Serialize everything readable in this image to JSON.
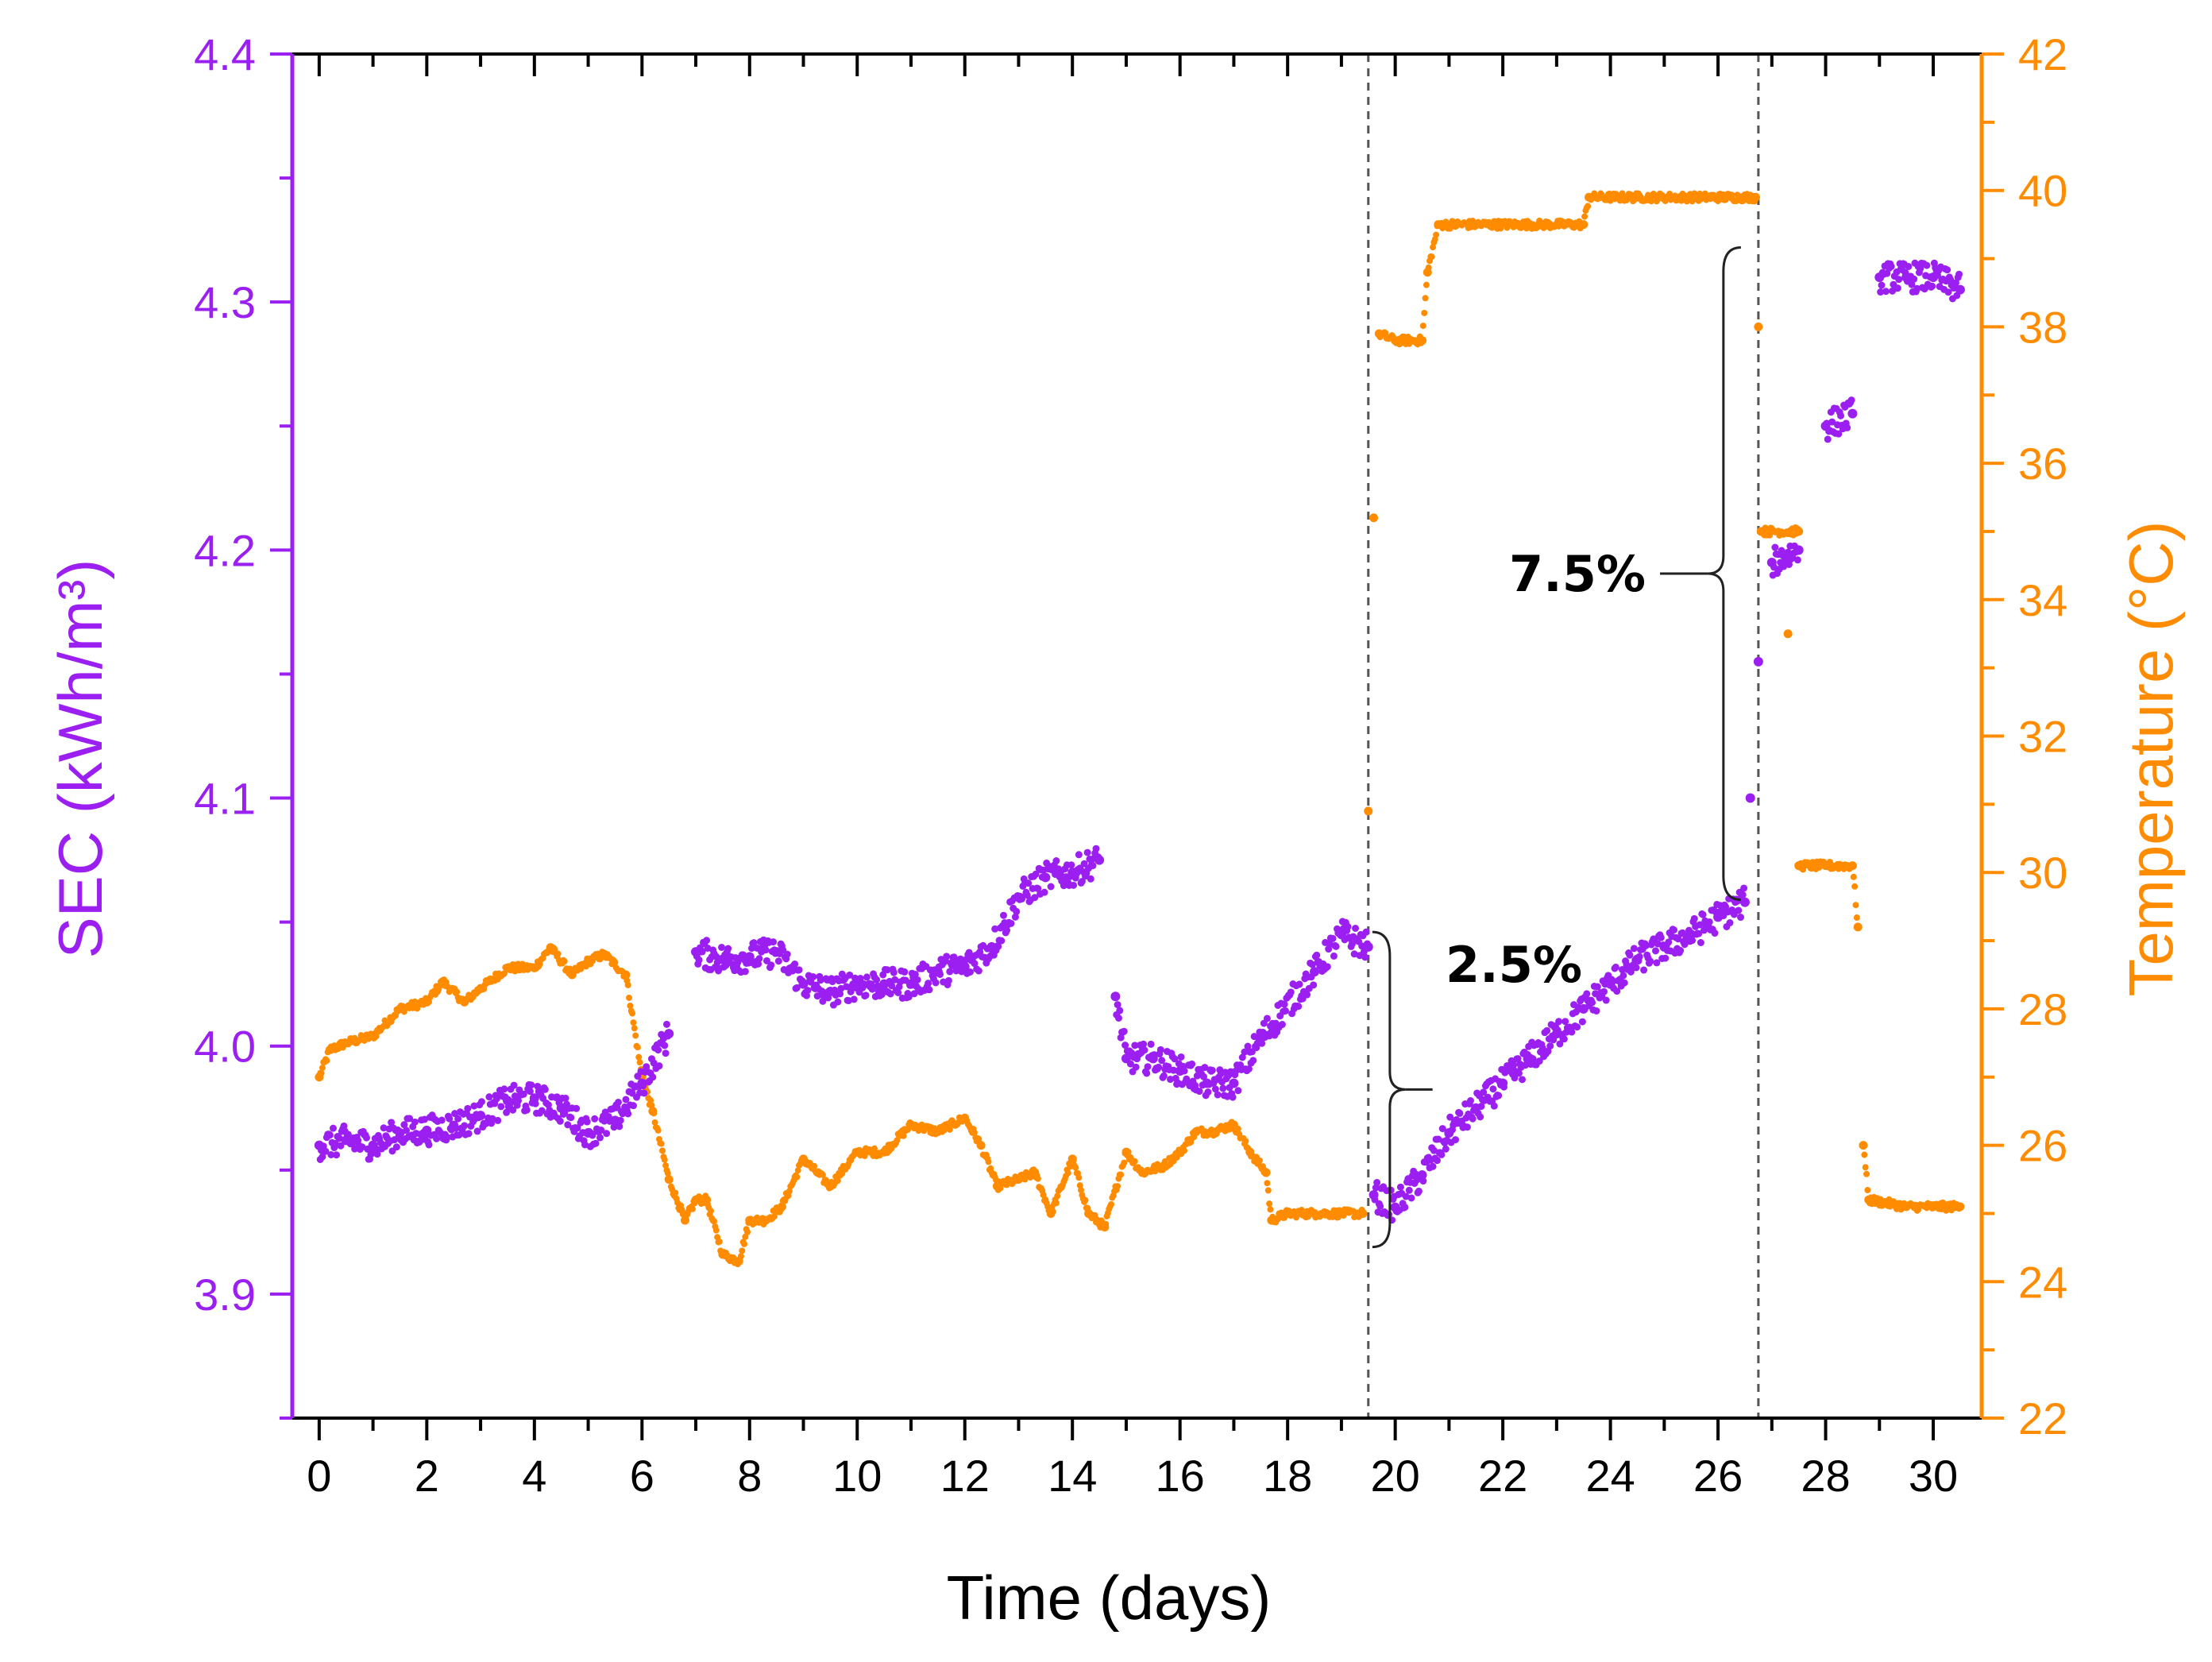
{
  "chart_data": {
    "type": "scatter",
    "title": "",
    "xlabel": "Time (days)",
    "ylabel_left": "SEC (kWh/m³)",
    "ylabel_right": "Temperature (°C)",
    "xlim": [
      -0.5,
      30.9
    ],
    "ylim_left": [
      3.85,
      4.4
    ],
    "ylim_right": [
      22,
      42
    ],
    "x_ticks": [
      "0",
      "2",
      "4",
      "6",
      "8",
      "10",
      "12",
      "14",
      "16",
      "18",
      "20",
      "22",
      "24",
      "26",
      "28",
      "30"
    ],
    "y_ticks_left": [
      "3.9",
      "4.0",
      "4.1",
      "4.2",
      "4.3",
      "4.4"
    ],
    "y_ticks_right": [
      "22",
      "24",
      "26",
      "28",
      "30",
      "32",
      "34",
      "36",
      "38",
      "40",
      "42"
    ],
    "grid": false,
    "colors": {
      "sec": "#9b1ff0",
      "temperature": "#ff8c00",
      "annotation": "#000000",
      "divider": "#555555"
    },
    "vertical_lines_x": [
      19.5,
      26.75
    ],
    "series": [
      {
        "name": "SEC",
        "axis": "left",
        "color": "#9b1ff0",
        "points": [
          [
            0.0,
            3.96
          ],
          [
            0.5,
            3.962
          ],
          [
            1.0,
            3.96
          ],
          [
            1.5,
            3.965
          ],
          [
            2.0,
            3.966
          ],
          [
            2.5,
            3.968
          ],
          [
            3.0,
            3.972
          ],
          [
            3.5,
            3.978
          ],
          [
            4.0,
            3.979
          ],
          [
            4.5,
            3.975
          ],
          [
            5.0,
            3.965
          ],
          [
            5.5,
            3.97
          ],
          [
            6.0,
            3.985
          ],
          [
            6.5,
            4.005
          ],
          [
            7.0,
            4.038
          ],
          [
            7.5,
            4.035
          ],
          [
            8.0,
            4.036
          ],
          [
            8.5,
            4.038
          ],
          [
            9.0,
            4.025
          ],
          [
            9.5,
            4.022
          ],
          [
            10.0,
            4.025
          ],
          [
            10.5,
            4.025
          ],
          [
            11.0,
            4.025
          ],
          [
            11.5,
            4.03
          ],
          [
            12.0,
            4.032
          ],
          [
            12.5,
            4.04
          ],
          [
            13.0,
            4.06
          ],
          [
            13.5,
            4.068
          ],
          [
            14.0,
            4.07
          ],
          [
            14.5,
            4.075
          ],
          [
            14.8,
            4.02
          ],
          [
            15.0,
            3.995
          ],
          [
            15.5,
            3.995
          ],
          [
            16.0,
            3.99
          ],
          [
            16.5,
            3.985
          ],
          [
            17.0,
            3.985
          ],
          [
            17.5,
            4.003
          ],
          [
            18.5,
            4.03
          ],
          [
            19.0,
            4.045
          ],
          [
            19.5,
            4.04
          ],
          [
            19.6,
            3.94
          ],
          [
            20.0,
            3.935
          ],
          [
            20.5,
            3.948
          ],
          [
            21.0,
            3.965
          ],
          [
            21.5,
            3.975
          ],
          [
            22.0,
            3.985
          ],
          [
            22.5,
            3.995
          ],
          [
            23.0,
            4.005
          ],
          [
            23.5,
            4.015
          ],
          [
            24.0,
            4.025
          ],
          [
            24.5,
            4.035
          ],
          [
            25.0,
            4.04
          ],
          [
            25.5,
            4.045
          ],
          [
            26.0,
            4.052
          ],
          [
            26.5,
            4.058
          ],
          [
            26.6,
            4.1
          ],
          [
            26.75,
            4.155
          ],
          [
            27.0,
            4.195
          ],
          [
            27.5,
            4.2
          ],
          [
            28.0,
            4.25
          ],
          [
            28.5,
            4.255
          ],
          [
            29.0,
            4.31
          ],
          [
            29.5,
            4.31
          ],
          [
            30.0,
            4.31
          ],
          [
            30.5,
            4.305
          ]
        ]
      },
      {
        "name": "Temperature",
        "axis": "right",
        "color": "#ff8c00",
        "points": [
          [
            0.0,
            27.0
          ],
          [
            0.2,
            27.4
          ],
          [
            0.5,
            27.5
          ],
          [
            1.0,
            27.6
          ],
          [
            1.5,
            28.0
          ],
          [
            2.0,
            28.1
          ],
          [
            2.3,
            28.4
          ],
          [
            2.7,
            28.1
          ],
          [
            3.0,
            28.3
          ],
          [
            3.5,
            28.6
          ],
          [
            4.0,
            28.6
          ],
          [
            4.3,
            28.9
          ],
          [
            4.7,
            28.5
          ],
          [
            5.0,
            28.7
          ],
          [
            5.3,
            28.8
          ],
          [
            5.7,
            28.5
          ],
          [
            6.0,
            27.0
          ],
          [
            6.2,
            26.5
          ],
          [
            6.5,
            25.5
          ],
          [
            6.8,
            24.9
          ],
          [
            7.0,
            25.2
          ],
          [
            7.2,
            25.2
          ],
          [
            7.5,
            24.4
          ],
          [
            7.8,
            24.3
          ],
          [
            8.0,
            24.9
          ],
          [
            8.3,
            24.9
          ],
          [
            8.6,
            25.1
          ],
          [
            9.0,
            25.8
          ],
          [
            9.5,
            25.4
          ],
          [
            10.0,
            25.9
          ],
          [
            10.5,
            25.9
          ],
          [
            11.0,
            26.3
          ],
          [
            11.5,
            26.2
          ],
          [
            12.0,
            26.4
          ],
          [
            12.3,
            26.0
          ],
          [
            12.6,
            25.4
          ],
          [
            13.0,
            25.5
          ],
          [
            13.3,
            25.6
          ],
          [
            13.6,
            25.0
          ],
          [
            14.0,
            25.8
          ],
          [
            14.3,
            25.0
          ],
          [
            14.6,
            24.8
          ],
          [
            15.0,
            25.9
          ],
          [
            15.3,
            25.6
          ],
          [
            15.7,
            25.7
          ],
          [
            16.0,
            25.9
          ],
          [
            16.3,
            26.2
          ],
          [
            16.6,
            26.2
          ],
          [
            17.0,
            26.3
          ],
          [
            17.3,
            25.9
          ],
          [
            17.6,
            25.6
          ],
          [
            17.7,
            24.9
          ],
          [
            18.0,
            25.0
          ],
          [
            18.5,
            25.0
          ],
          [
            19.0,
            25.0
          ],
          [
            19.4,
            25.0
          ],
          [
            19.5,
            30.9
          ],
          [
            19.6,
            35.2
          ],
          [
            19.7,
            37.9
          ],
          [
            20.0,
            37.8
          ],
          [
            20.5,
            37.8
          ],
          [
            20.6,
            38.8
          ],
          [
            20.8,
            39.5
          ],
          [
            21.5,
            39.5
          ],
          [
            22.5,
            39.5
          ],
          [
            23.5,
            39.5
          ],
          [
            23.6,
            39.9
          ],
          [
            24.5,
            39.9
          ],
          [
            25.5,
            39.9
          ],
          [
            26.7,
            39.9
          ],
          [
            26.75,
            38.0
          ],
          [
            26.8,
            35.0
          ],
          [
            27.5,
            35.0
          ],
          [
            27.3,
            33.5
          ],
          [
            27.5,
            30.1
          ],
          [
            28.0,
            30.1
          ],
          [
            28.5,
            30.1
          ],
          [
            28.6,
            29.2
          ],
          [
            28.7,
            26.0
          ],
          [
            28.8,
            25.2
          ],
          [
            29.5,
            25.1
          ],
          [
            30.0,
            25.1
          ],
          [
            30.5,
            25.1
          ]
        ]
      }
    ],
    "annotations": [
      {
        "text": "2.5%",
        "x": 21.9,
        "y_left": 4.036
      },
      {
        "text": "7.5%",
        "x": 24.3,
        "y_left": 4.195
      }
    ]
  }
}
